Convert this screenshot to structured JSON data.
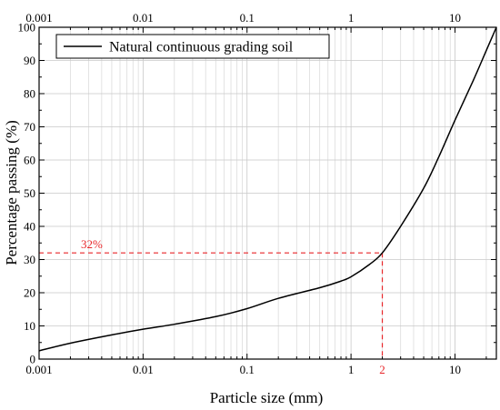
{
  "chart_data": {
    "type": "line",
    "x_scale": "log",
    "xlabel": "Particle size (mm)",
    "ylabel": "Percentage passing (%)",
    "xlim": [
      0.001,
      25
    ],
    "ylim": [
      0,
      100
    ],
    "x_ticks": [
      0.001,
      0.01,
      0.1,
      1,
      10
    ],
    "x_tick_labels": [
      "0.001",
      "0.01",
      "0.1",
      "1",
      "10"
    ],
    "y_ticks": [
      0,
      10,
      20,
      30,
      40,
      50,
      60,
      70,
      80,
      90,
      100
    ],
    "y_tick_labels": [
      "0",
      "10",
      "20",
      "30",
      "40",
      "50",
      "60",
      "70",
      "80",
      "90",
      "100"
    ],
    "grid": true,
    "legend_position": "top-left",
    "series": [
      {
        "name": "Natural continuous grading soil",
        "color": "#000000",
        "points": [
          [
            0.001,
            2.5
          ],
          [
            0.002,
            4.8
          ],
          [
            0.005,
            7.3
          ],
          [
            0.01,
            9.0
          ],
          [
            0.02,
            10.5
          ],
          [
            0.05,
            12.8
          ],
          [
            0.1,
            15.2
          ],
          [
            0.2,
            18.3
          ],
          [
            0.5,
            21.5
          ],
          [
            0.8,
            23.5
          ],
          [
            1,
            24.8
          ],
          [
            1.5,
            28.5
          ],
          [
            2,
            32
          ],
          [
            3,
            40
          ],
          [
            5,
            51.5
          ],
          [
            7,
            61
          ],
          [
            10,
            72
          ],
          [
            15,
            84
          ],
          [
            20,
            93
          ],
          [
            25,
            100
          ]
        ]
      }
    ],
    "annotation": {
      "x": 2,
      "y": 32,
      "x_label": "2",
      "y_label": "32%",
      "color": "#e8262a"
    }
  }
}
